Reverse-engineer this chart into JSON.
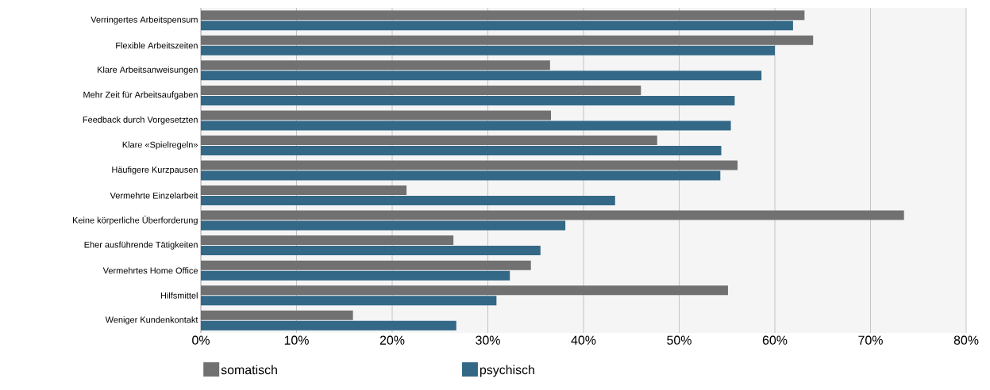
{
  "chart_data": {
    "type": "bar",
    "orientation": "horizontal",
    "categories": [
      "Verringertes Arbeitspensum",
      "Flexible Arbeitszeiten",
      "Klare Arbeitsanweisungen",
      "Mehr Zeit für Arbeitsaufgaben",
      "Feedback durch Vorgesetzten",
      "Klare «Spielregeln»",
      "Häufigere Kurzpausen",
      "Vermehrte Einzelarbeit",
      "Keine körperliche Überforderung",
      "Eher ausführende Tätigkeiten",
      "Vermehrtes Home Office",
      "Hilfsmittel",
      "Weniger Kundenkontakt"
    ],
    "series": [
      {
        "name": "somatisch",
        "color": "#717171",
        "values": [
          63.1,
          64.0,
          36.5,
          46.0,
          36.6,
          47.7,
          56.1,
          21.5,
          73.5,
          26.4,
          34.5,
          55.1,
          15.9
        ]
      },
      {
        "name": "psychisch",
        "color": "#336887",
        "values": [
          61.9,
          60.0,
          58.6,
          55.8,
          55.4,
          54.4,
          54.3,
          43.3,
          38.1,
          35.5,
          32.3,
          30.9,
          26.7
        ]
      }
    ],
    "xlim": [
      0,
      80
    ],
    "xticks": [
      {
        "value": 0,
        "label": "0%"
      },
      {
        "value": 10,
        "label": "10%"
      },
      {
        "value": 20,
        "label": "20%"
      },
      {
        "value": 30,
        "label": "30%"
      },
      {
        "value": 40,
        "label": "40%"
      },
      {
        "value": 50,
        "label": "50%"
      },
      {
        "value": 60,
        "label": "60%"
      },
      {
        "value": 70,
        "label": "70%"
      },
      {
        "value": 80,
        "label": "80%"
      }
    ],
    "grid": "x",
    "legend": "bottom"
  }
}
